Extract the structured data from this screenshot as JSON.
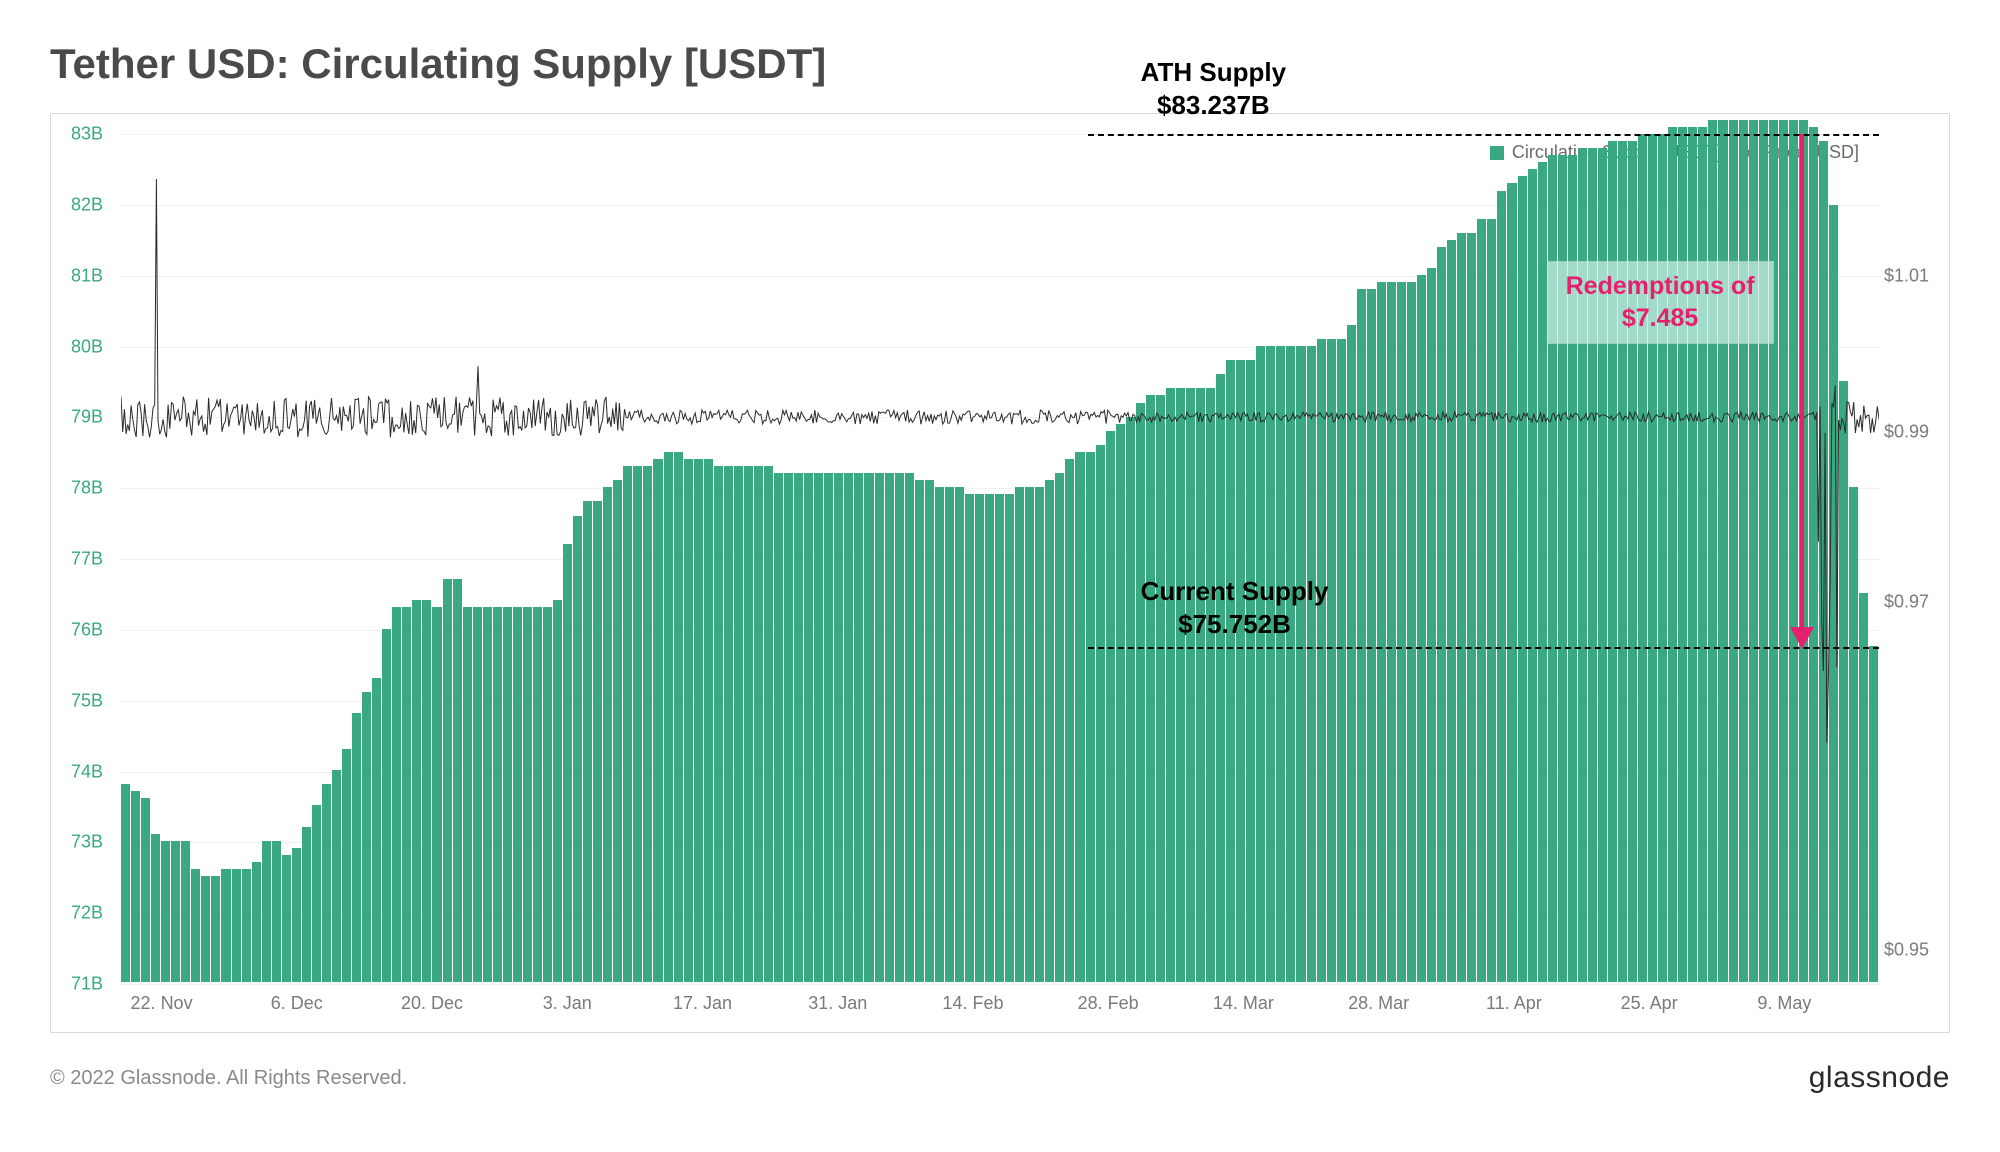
{
  "title": "Tether USD: Circulating Supply [USDT]",
  "chart": {
    "type": "bar+line",
    "background_color": "#ffffff",
    "grid_color": "#f0f0f0",
    "border_color": "#d8d8d8",
    "left_axis": {
      "color": "#3aa981",
      "min": 71,
      "max": 83,
      "ticks": [
        71,
        72,
        73,
        74,
        75,
        76,
        77,
        78,
        79,
        80,
        81,
        82,
        83
      ],
      "tick_labels": [
        "71B",
        "72B",
        "73B",
        "74B",
        "75B",
        "76B",
        "77B",
        "78B",
        "79B",
        "80B",
        "81B",
        "82B",
        "83B"
      ],
      "fontsize": 18
    },
    "right_axis": {
      "color": "#7a7a7a",
      "ticks": [
        0.95,
        0.97,
        0.99,
        1.01
      ],
      "tick_labels": [
        "$0.95",
        "$0.97",
        "$0.99",
        "$1.01"
      ],
      "fontsize": 18
    },
    "x_axis": {
      "labels": [
        "22. Nov",
        "6. Dec",
        "20. Dec",
        "3. Jan",
        "17. Jan",
        "31. Jan",
        "14. Feb",
        "28. Feb",
        "14. Mar",
        "28. Mar",
        "11. Apr",
        "25. Apr",
        "9. May"
      ],
      "fontsize": 18,
      "color": "#7a7a7a"
    },
    "legend": {
      "items": [
        {
          "label": "Circulating Supply [USDT]",
          "color": "#3aa981",
          "shape": "square"
        },
        {
          "label": "Price [USD]",
          "color": "#777777",
          "shape": "dot"
        }
      ],
      "fontsize": 18
    },
    "supply_series": {
      "color": "#3aa981",
      "bar_gap": 1,
      "values": [
        73.8,
        73.7,
        73.6,
        73.1,
        73.0,
        73.0,
        73.0,
        72.6,
        72.5,
        72.5,
        72.6,
        72.6,
        72.6,
        72.7,
        73.0,
        73.0,
        72.8,
        72.9,
        73.2,
        73.5,
        73.8,
        74.0,
        74.3,
        74.8,
        75.1,
        75.3,
        76.0,
        76.3,
        76.3,
        76.4,
        76.4,
        76.3,
        76.7,
        76.7,
        76.3,
        76.3,
        76.3,
        76.3,
        76.3,
        76.3,
        76.3,
        76.3,
        76.3,
        76.4,
        77.2,
        77.6,
        77.8,
        77.8,
        78.0,
        78.1,
        78.3,
        78.3,
        78.3,
        78.4,
        78.5,
        78.5,
        78.4,
        78.4,
        78.4,
        78.3,
        78.3,
        78.3,
        78.3,
        78.3,
        78.3,
        78.2,
        78.2,
        78.2,
        78.2,
        78.2,
        78.2,
        78.2,
        78.2,
        78.2,
        78.2,
        78.2,
        78.2,
        78.2,
        78.2,
        78.1,
        78.1,
        78.0,
        78.0,
        78.0,
        77.9,
        77.9,
        77.9,
        77.9,
        77.9,
        78.0,
        78.0,
        78.0,
        78.1,
        78.2,
        78.4,
        78.5,
        78.5,
        78.6,
        78.8,
        78.9,
        79.0,
        79.2,
        79.3,
        79.3,
        79.4,
        79.4,
        79.4,
        79.4,
        79.4,
        79.6,
        79.8,
        79.8,
        79.8,
        80.0,
        80.0,
        80.0,
        80.0,
        80.0,
        80.0,
        80.1,
        80.1,
        80.1,
        80.3,
        80.8,
        80.8,
        80.9,
        80.9,
        80.9,
        80.9,
        81.0,
        81.1,
        81.4,
        81.5,
        81.6,
        81.6,
        81.8,
        81.8,
        82.2,
        82.3,
        82.4,
        82.5,
        82.6,
        82.7,
        82.7,
        82.7,
        82.8,
        82.8,
        82.8,
        82.9,
        82.9,
        82.9,
        83.0,
        83.0,
        83.0,
        83.1,
        83.1,
        83.1,
        83.1,
        83.2,
        83.2,
        83.2,
        83.2,
        83.2,
        83.2,
        83.2,
        83.2,
        83.2,
        83.2,
        83.1,
        82.9,
        82.0,
        79.5,
        78.0,
        76.5,
        75.75
      ]
    },
    "price_series": {
      "color": "#2a2a2a",
      "stroke_width": 1,
      "baseline": 1.0,
      "baseline_frac": 0.333,
      "noise_amplitude": 0.006,
      "spike_points": [
        {
          "idx": 3,
          "value": 1.032
        },
        {
          "idx": 35,
          "value": 1.006
        },
        {
          "idx": 168,
          "dip": 0.96,
          "band": 0.03
        }
      ]
    },
    "annotations": {
      "ath": {
        "line1": "ATH Supply",
        "line2": "$83.237B",
        "level": 83.237
      },
      "current": {
        "line1": "Current Supply",
        "line2": "$75.752B",
        "level": 75.752
      },
      "redemption": {
        "line1": "Redemptions of",
        "line2": "$7.485",
        "color": "#e6206f",
        "box_bg": "rgba(200,235,225,0.75)"
      },
      "text_fontsize": 26,
      "text_color": "#000000",
      "dash": "4 4"
    }
  },
  "footer": {
    "copyright": "© 2022 Glassnode. All Rights Reserved.",
    "brand": "glassnode"
  }
}
